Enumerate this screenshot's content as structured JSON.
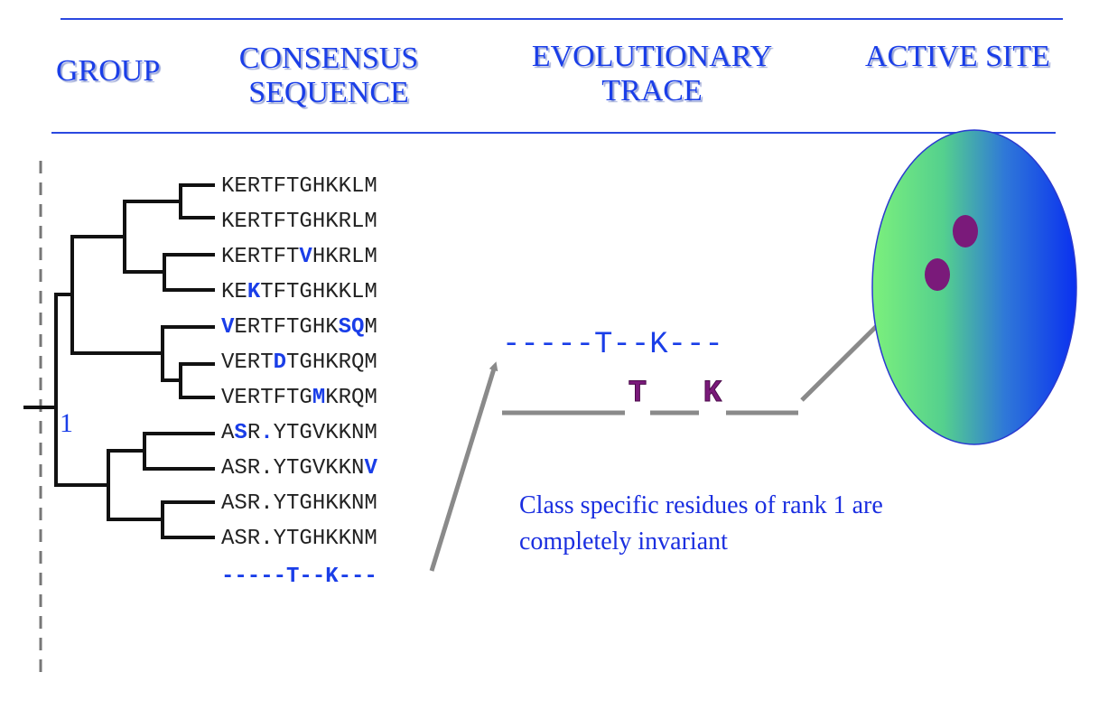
{
  "headers": {
    "group": "GROUP",
    "consensus": [
      "CONSENSUS",
      "SEQUENCE"
    ],
    "trace": [
      "EVOLUTIONARY",
      "TRACE"
    ],
    "active_site": "ACTIVE SITE"
  },
  "group_label": "1",
  "sequences": [
    {
      "segments": [
        {
          "t": "KERTFTGHKKLM",
          "h": false
        }
      ]
    },
    {
      "segments": [
        {
          "t": "KERTFTGHKRLM",
          "h": false
        }
      ]
    },
    {
      "segments": [
        {
          "t": "KERTFT",
          "h": false
        },
        {
          "t": "V",
          "h": true
        },
        {
          "t": "HKRLM",
          "h": false
        }
      ]
    },
    {
      "segments": [
        {
          "t": "KE",
          "h": false
        },
        {
          "t": "K",
          "h": true
        },
        {
          "t": "TFTGHKKLM",
          "h": false
        }
      ]
    },
    {
      "segments": [
        {
          "t": "V",
          "h": true
        },
        {
          "t": "ERTFTGHK",
          "h": false
        },
        {
          "t": "SQ",
          "h": true
        },
        {
          "t": "M",
          "h": false
        }
      ]
    },
    {
      "segments": [
        {
          "t": "VERT",
          "h": false
        },
        {
          "t": "D",
          "h": true
        },
        {
          "t": "TGHKRQM",
          "h": false
        }
      ]
    },
    {
      "segments": [
        {
          "t": "VERTFTG",
          "h": false
        },
        {
          "t": "M",
          "h": true
        },
        {
          "t": "KRQM",
          "h": false
        }
      ]
    },
    {
      "segments": [
        {
          "t": "A",
          "h": false
        },
        {
          "t": "S",
          "h": true
        },
        {
          "t": "R",
          "h": false
        },
        {
          "t": ".",
          "h": true
        },
        {
          "t": "YTGVKKNM",
          "h": false
        }
      ]
    },
    {
      "segments": [
        {
          "t": "ASR.YTGVKKN",
          "h": false
        },
        {
          "t": "V",
          "h": true
        }
      ]
    },
    {
      "segments": [
        {
          "t": "ASR.YTGHKKNM",
          "h": false
        }
      ]
    },
    {
      "segments": [
        {
          "t": "ASR.YTGHKKNM",
          "h": false
        }
      ]
    }
  ],
  "consensus": "-----T--K---",
  "trace": {
    "consensus_line": "-----T--K---",
    "residues": [
      "T",
      "K"
    ]
  },
  "note": [
    "Class specific residues of rank 1 are",
    "completely invariant"
  ],
  "colors": {
    "blue": "#1a3ee8",
    "purple": "#7a1a7a",
    "arrow": "#8a8a8a",
    "ellipse_left": "#7cf07c",
    "ellipse_right": "#0a30f0"
  }
}
